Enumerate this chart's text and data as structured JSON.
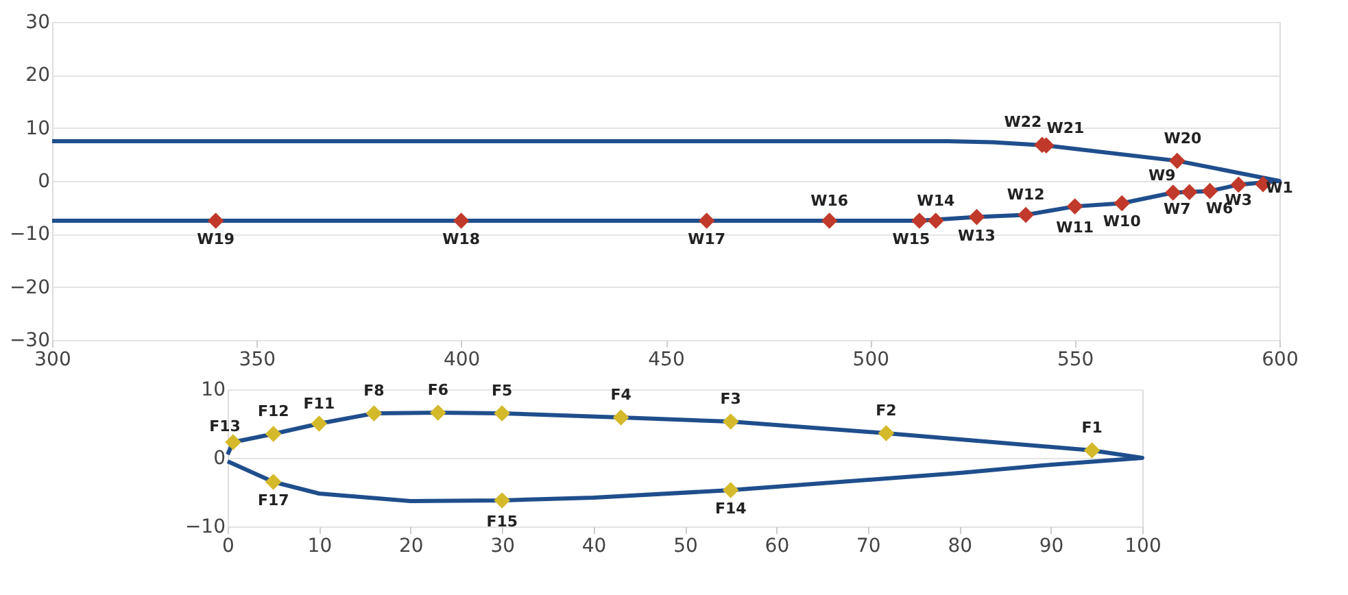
{
  "chart_data": [
    {
      "type": "line",
      "xlim": [
        300,
        600
      ],
      "ylim": [
        -30,
        30
      ],
      "xticks": [
        300,
        350,
        400,
        450,
        500,
        550,
        600
      ],
      "yticks": [
        -30,
        -20,
        -10,
        0,
        10,
        20,
        30
      ],
      "grid": "y",
      "series": [
        {
          "color": "#1f4e8c",
          "line_style": "solid",
          "x": [
            300,
            519,
            530,
            543,
            575,
            600,
            590,
            583,
            574,
            561.5,
            550,
            538,
            526,
            512,
            300
          ],
          "values": [
            7.5,
            7.5,
            7.3,
            6.7,
            3.8,
            0,
            -0.7,
            -1.9,
            -2.2,
            -4.2,
            -4.8,
            -6.4,
            -6.8,
            -7.5,
            -7.5
          ]
        },
        {
          "type": "scatter",
          "marker": "diamond",
          "color": "#c0392b",
          "x": [
            596,
            590,
            583,
            578,
            574,
            561.5,
            550,
            538,
            526,
            516,
            512,
            490,
            460,
            400,
            340,
            575,
            543,
            542
          ],
          "values": [
            -0.6,
            -0.7,
            -1.9,
            -2.1,
            -2.2,
            -4.2,
            -4.8,
            -6.4,
            -6.8,
            -7.5,
            -7.5,
            -7.5,
            -7.5,
            -7.5,
            -7.5,
            3.8,
            6.7,
            6.8
          ]
        }
      ],
      "annotations": [
        {
          "text": "W1",
          "x": 596,
          "y": -0.6
        },
        {
          "text": "W3",
          "x": 590,
          "y": -0.7
        },
        {
          "text": "W6",
          "x": 583,
          "y": -1.9
        },
        {
          "text": "W7",
          "x": 578,
          "y": -2.1
        },
        {
          "text": "W9",
          "x": 574,
          "y": -2.2
        },
        {
          "text": "W10",
          "x": 561.5,
          "y": -4.2
        },
        {
          "text": "W11",
          "x": 550,
          "y": -4.8
        },
        {
          "text": "W12",
          "x": 538,
          "y": -6.4
        },
        {
          "text": "W13",
          "x": 526,
          "y": -6.8
        },
        {
          "text": "W14",
          "x": 516,
          "y": -7.5
        },
        {
          "text": "W15",
          "x": 512,
          "y": -7.5
        },
        {
          "text": "W16",
          "x": 490,
          "y": -7.5
        },
        {
          "text": "W17",
          "x": 460,
          "y": -7.5
        },
        {
          "text": "W18",
          "x": 400,
          "y": -7.5
        },
        {
          "text": "W19",
          "x": 340,
          "y": -7.5
        },
        {
          "text": "W20",
          "x": 575,
          "y": 3.8
        },
        {
          "text": "W21",
          "x": 543,
          "y": 6.7
        },
        {
          "text": "W22",
          "x": 542,
          "y": 6.8
        }
      ]
    },
    {
      "type": "line",
      "xlim": [
        0,
        100
      ],
      "ylim": [
        -10,
        10
      ],
      "xticks": [
        0,
        10,
        20,
        30,
        40,
        50,
        60,
        70,
        80,
        90,
        100
      ],
      "yticks": [
        -10,
        0,
        10
      ],
      "grid": "y",
      "series": [
        {
          "color": "#1f4e8c",
          "line_style": "solid",
          "x": [
            0,
            0.6,
            5,
            10,
            16,
            23,
            30,
            43,
            55,
            72,
            94.5,
            100,
            90,
            80,
            70,
            55,
            40,
            30,
            20,
            10,
            5,
            0
          ],
          "values": [
            0.5,
            2.3,
            3.5,
            5,
            6.5,
            6.6,
            6.5,
            5.9,
            5.3,
            3.6,
            1.1,
            0,
            -1,
            -2.2,
            -3.2,
            -4.7,
            -5.8,
            -6.2,
            -6.3,
            -5.2,
            -3.5,
            -0.5
          ]
        },
        {
          "type": "scatter",
          "marker": "diamond",
          "color": "#d4b92a",
          "x": [
            94.5,
            72,
            55,
            43,
            30,
            23,
            16,
            10,
            5,
            0.6,
            55,
            30,
            5
          ],
          "values": [
            1.1,
            3.6,
            5.3,
            5.9,
            6.5,
            6.6,
            6.5,
            5,
            3.5,
            2.3,
            -4.7,
            -6.2,
            -3.5
          ]
        }
      ],
      "annotations": [
        {
          "text": "F1",
          "x": 94.5,
          "y": 1.1
        },
        {
          "text": "F2",
          "x": 72,
          "y": 3.6
        },
        {
          "text": "F3",
          "x": 55,
          "y": 5.3
        },
        {
          "text": "F4",
          "x": 43,
          "y": 5.9
        },
        {
          "text": "F5",
          "x": 30,
          "y": 6.5
        },
        {
          "text": "F6",
          "x": 23,
          "y": 6.6
        },
        {
          "text": "F8",
          "x": 16,
          "y": 6.5
        },
        {
          "text": "F11",
          "x": 10,
          "y": 5
        },
        {
          "text": "F12",
          "x": 5,
          "y": 3.5
        },
        {
          "text": "F13",
          "x": 0.6,
          "y": 2.3
        },
        {
          "text": "F14",
          "x": 55,
          "y": -4.7
        },
        {
          "text": "F15",
          "x": 30,
          "y": -6.2
        },
        {
          "text": "F17",
          "x": 5,
          "y": -3.5
        }
      ]
    }
  ]
}
